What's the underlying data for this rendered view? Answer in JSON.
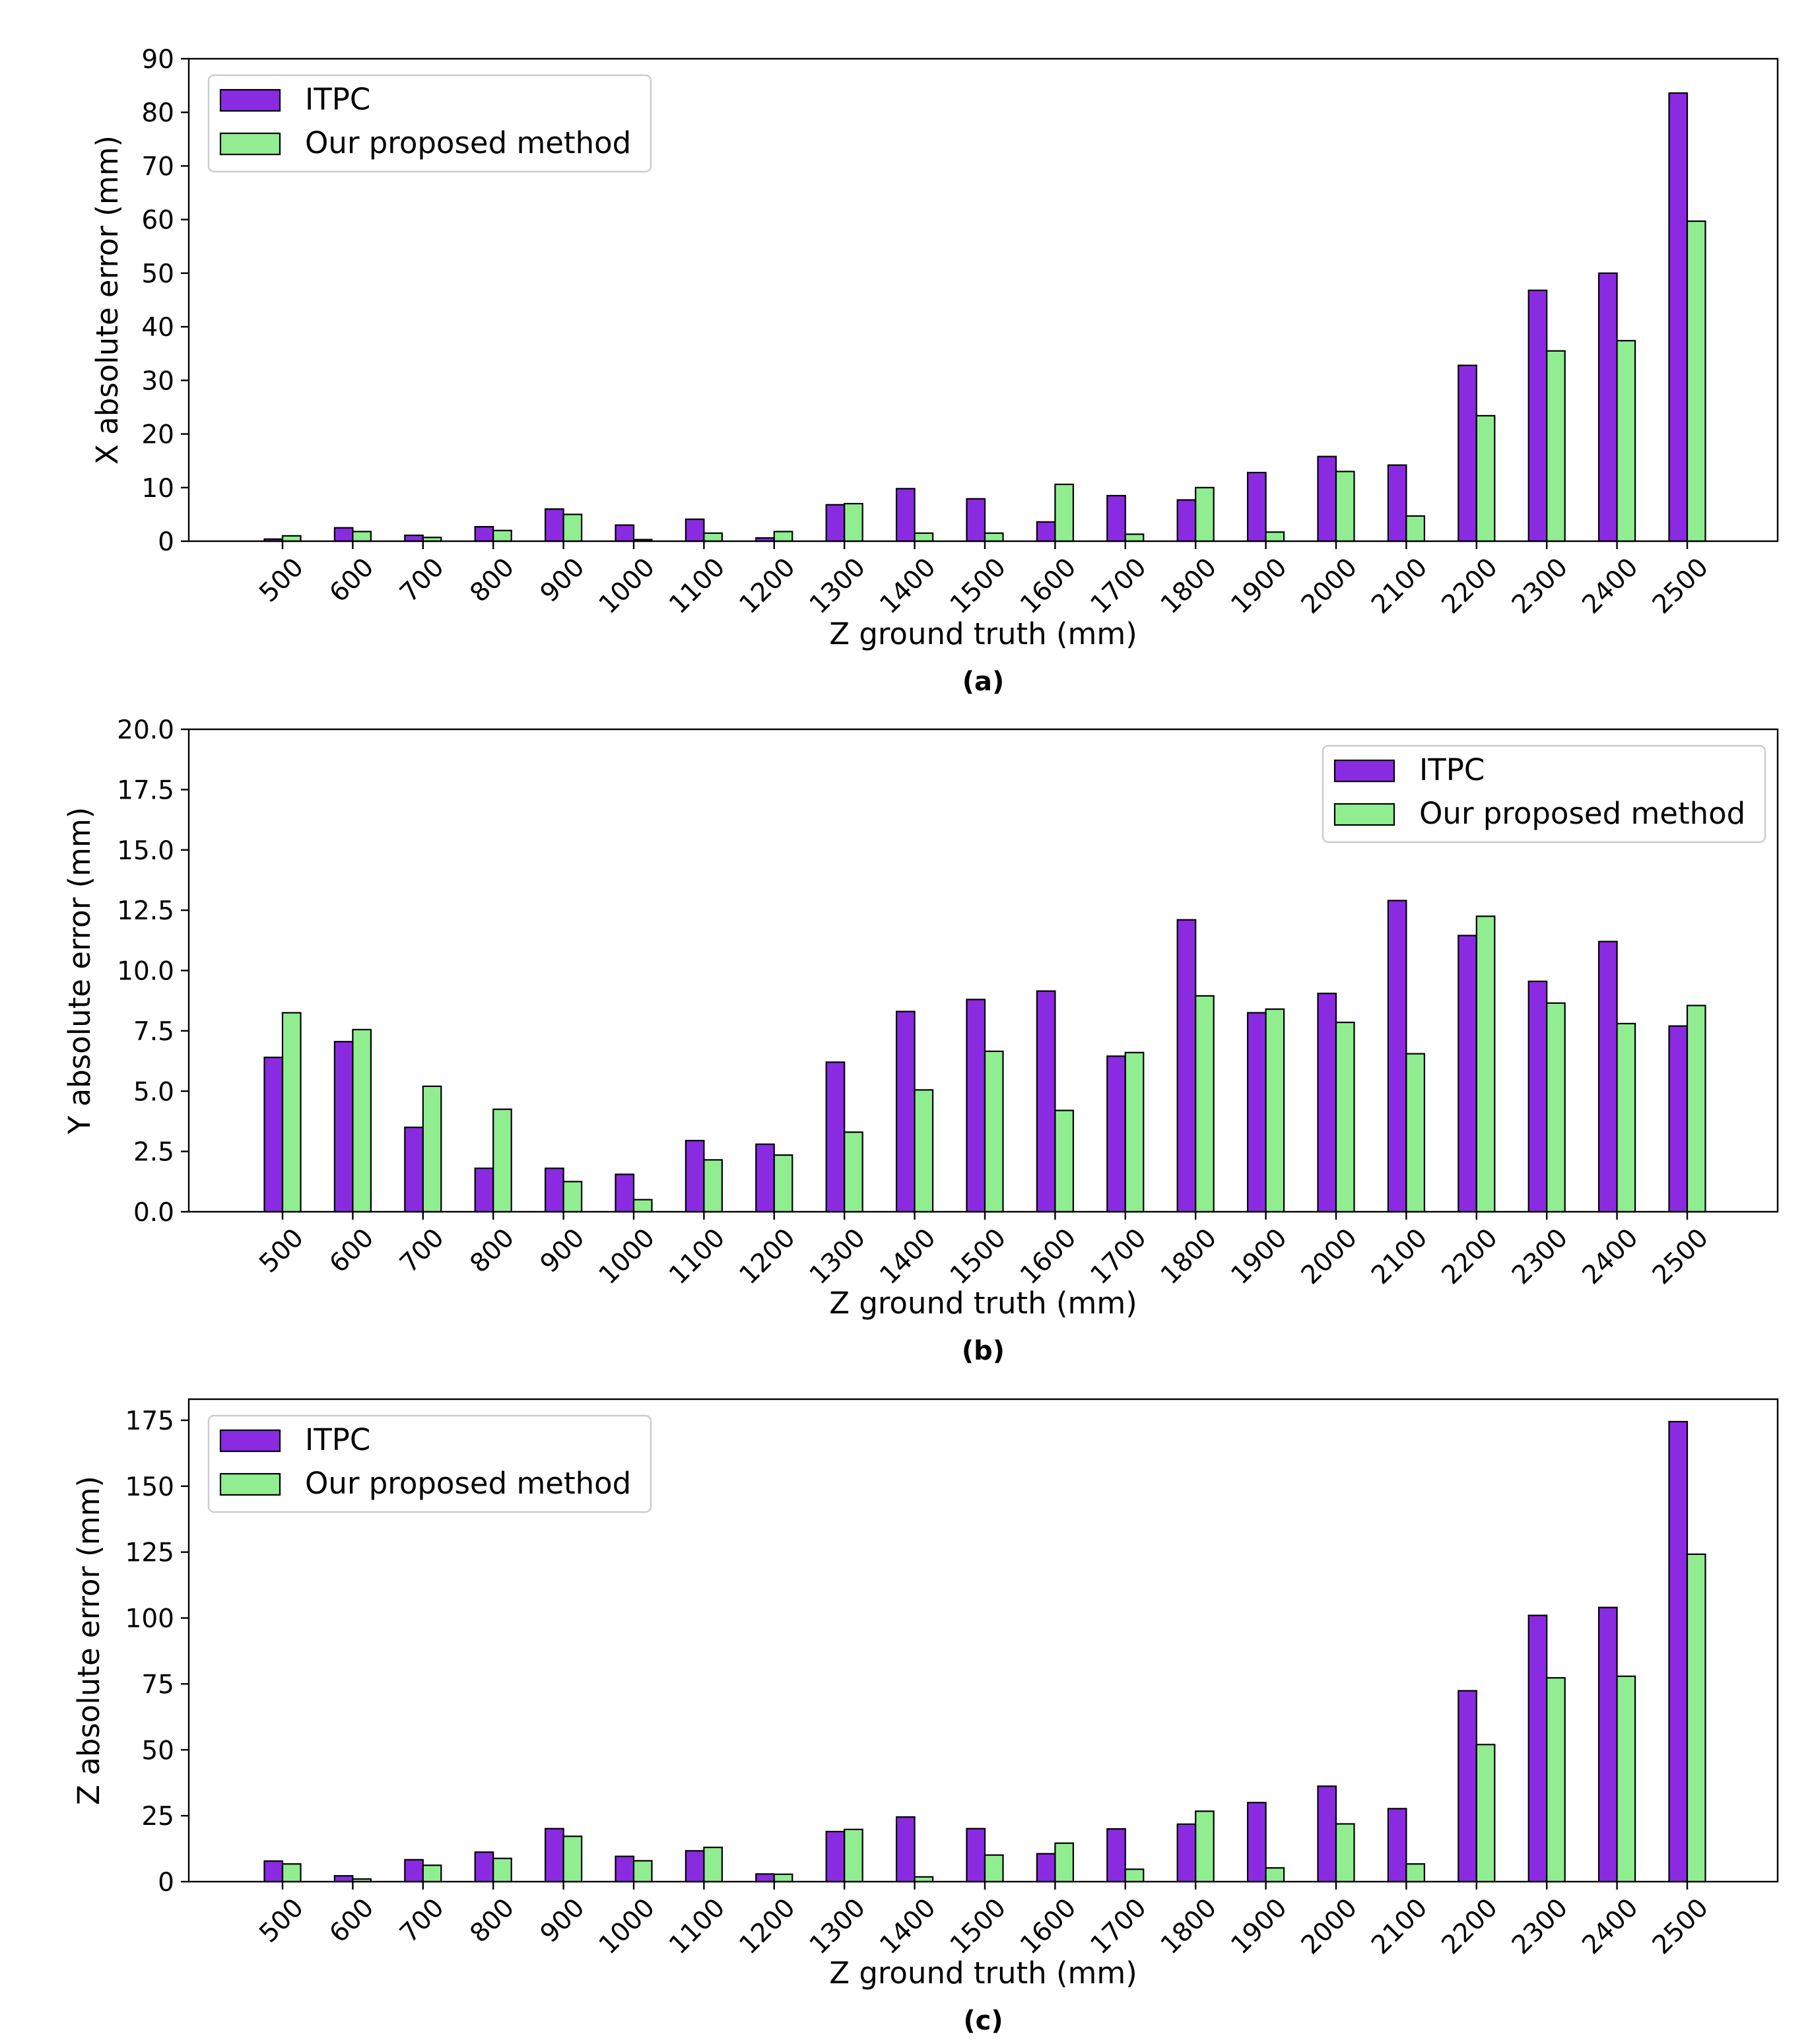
{
  "chart_data": [
    {
      "type": "bar",
      "caption": "(a)",
      "xlabel": "Z ground truth (mm)",
      "ylabel": "X absolute error (mm)",
      "ylim": [
        0,
        90
      ],
      "yticks": [
        "0",
        "10",
        "20",
        "30",
        "40",
        "50",
        "60",
        "70",
        "80",
        "90"
      ],
      "legend_position": "upper-left",
      "categories": [
        "500",
        "600",
        "700",
        "800",
        "900",
        "1000",
        "1100",
        "1200",
        "1300",
        "1400",
        "1500",
        "1600",
        "1700",
        "1800",
        "1900",
        "2000",
        "2100",
        "2200",
        "2300",
        "2400",
        "2500"
      ],
      "series": [
        {
          "name": "ITPC",
          "color": "#8a2be2",
          "values": [
            0.4,
            2.5,
            1.1,
            2.7,
            6.0,
            3.0,
            4.1,
            0.6,
            6.8,
            9.8,
            7.9,
            3.6,
            8.5,
            7.7,
            12.8,
            15.8,
            14.2,
            32.8,
            46.8,
            50.0,
            83.6
          ]
        },
        {
          "name": "Our proposed method",
          "color": "#90ee90",
          "values": [
            1.0,
            1.8,
            0.7,
            2.0,
            5.0,
            0.3,
            1.5,
            1.8,
            7.0,
            1.5,
            1.5,
            10.6,
            1.3,
            10.0,
            1.7,
            13.0,
            4.7,
            23.4,
            35.5,
            37.4,
            59.7
          ]
        }
      ]
    },
    {
      "type": "bar",
      "caption": "(b)",
      "xlabel": "Z ground truth (mm)",
      "ylabel": "Y absolute error (mm)",
      "ylim": [
        0,
        20
      ],
      "yticks": [
        "0.0",
        "2.5",
        "5.0",
        "7.5",
        "10.0",
        "12.5",
        "15.0",
        "17.5",
        "20.0"
      ],
      "legend_position": "upper-right",
      "categories": [
        "500",
        "600",
        "700",
        "800",
        "900",
        "1000",
        "1100",
        "1200",
        "1300",
        "1400",
        "1500",
        "1600",
        "1700",
        "1800",
        "1900",
        "2000",
        "2100",
        "2200",
        "2300",
        "2400",
        "2500"
      ],
      "series": [
        {
          "name": "ITPC",
          "color": "#8a2be2",
          "values": [
            6.4,
            7.05,
            3.5,
            1.8,
            1.8,
            1.55,
            2.95,
            2.8,
            6.2,
            8.3,
            8.8,
            9.15,
            6.45,
            12.1,
            8.25,
            9.05,
            12.9,
            11.45,
            9.55,
            11.2,
            7.7
          ]
        },
        {
          "name": "Our proposed method",
          "color": "#90ee90",
          "values": [
            8.25,
            7.55,
            5.2,
            4.25,
            1.25,
            0.5,
            2.15,
            2.35,
            3.3,
            5.05,
            6.65,
            4.2,
            6.6,
            8.95,
            8.4,
            7.85,
            6.55,
            12.25,
            8.65,
            7.8,
            8.55
          ]
        }
      ]
    },
    {
      "type": "bar",
      "caption": "(c)",
      "xlabel": "Z ground truth (mm)",
      "ylabel": "Z absolute error (mm)",
      "ylim": [
        0,
        183
      ],
      "yticks": [
        "0",
        "25",
        "50",
        "75",
        "100",
        "125",
        "150",
        "175"
      ],
      "ytick_values": [
        0,
        25,
        50,
        75,
        100,
        125,
        150,
        175
      ],
      "legend_position": "upper-left",
      "categories": [
        "500",
        "600",
        "700",
        "800",
        "900",
        "1000",
        "1100",
        "1200",
        "1300",
        "1400",
        "1500",
        "1600",
        "1700",
        "1800",
        "1900",
        "2000",
        "2100",
        "2200",
        "2300",
        "2400",
        "2500"
      ],
      "series": [
        {
          "name": "ITPC",
          "color": "#8a2be2",
          "values": [
            7.8,
            2.2,
            8.3,
            11.2,
            20.1,
            9.6,
            11.7,
            2.9,
            19.0,
            24.5,
            20.1,
            10.6,
            20.0,
            21.8,
            30.0,
            36.2,
            27.7,
            72.4,
            101.0,
            104.0,
            174.5
          ]
        },
        {
          "name": "Our proposed method",
          "color": "#90ee90",
          "values": [
            6.7,
            1.0,
            6.2,
            8.8,
            17.2,
            7.9,
            13.0,
            2.8,
            19.8,
            1.8,
            10.1,
            14.6,
            4.7,
            26.7,
            5.2,
            21.9,
            6.7,
            52.0,
            77.3,
            77.9,
            124.2
          ]
        }
      ]
    }
  ]
}
